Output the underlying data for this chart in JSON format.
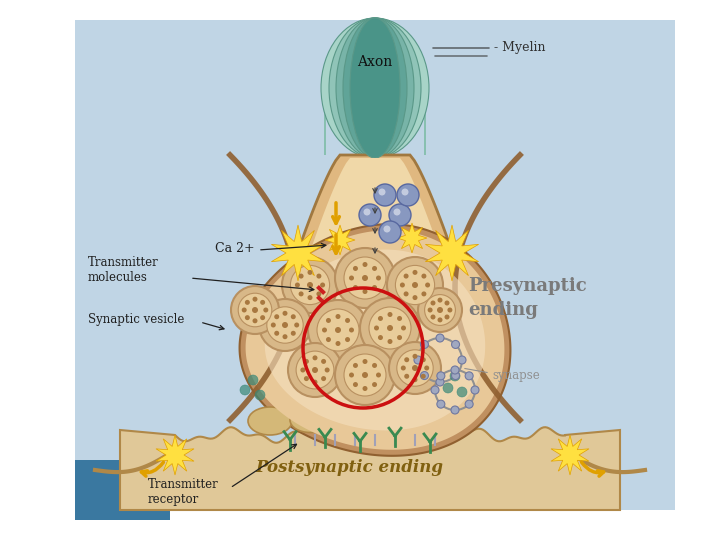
{
  "bg_color": "#c4d8e8",
  "white_bg": "#ffffff",
  "labels": {
    "axon": "Axon",
    "myelin": "- Myelin",
    "transmitter_molecules": "Transmitter\nmolecules",
    "ca2": "Ca 2+",
    "synaptic_vesicle": "Synaptic vesicle",
    "presynaptic": "Presynaptic\nending",
    "synapse": "synapse",
    "postsynaptic": "Postsynaptic ending",
    "transmitter_receptor": "Transmitter\nreceptor"
  },
  "colors": {
    "bg": "#c0d5e5",
    "axon_green_light": "#a8d4c8",
    "axon_green_dark": "#6aab98",
    "myelin_green": "#88c0b0",
    "neck_skin": "#e0b880",
    "neck_outline": "#a07840",
    "terminal_skin_outer": "#e8c898",
    "terminal_skin_inner": "#f5e0c0",
    "terminal_outline": "#c09060",
    "vesicle_outer": "#d8b888",
    "vesicle_inner": "#e8cc9a",
    "vesicle_dot": "#a87840",
    "vesicle_ring": "#b89060",
    "red_circle": "#cc1010",
    "ca_blue": "#8898c0",
    "ca_dark": "#5868a0",
    "yellow": "#ffe040",
    "yellow_dark": "#e0a000",
    "postsynaptic_bg": "#e0c898",
    "postsynaptic_cell": "#d4b878",
    "postsynaptic_outline": "#b08848",
    "receptor_color": "#3a8a50",
    "label_dark": "#202020",
    "presynaptic_label": "#7a7a7a",
    "postsynaptic_label": "#806010",
    "synapse_label": "#909090",
    "teal_spot": "#3a8878",
    "bottom_blue": "#3a78a0",
    "brown_outline": "#906030"
  },
  "figure_size": [
    7.2,
    5.4
  ],
  "dpi": 100
}
